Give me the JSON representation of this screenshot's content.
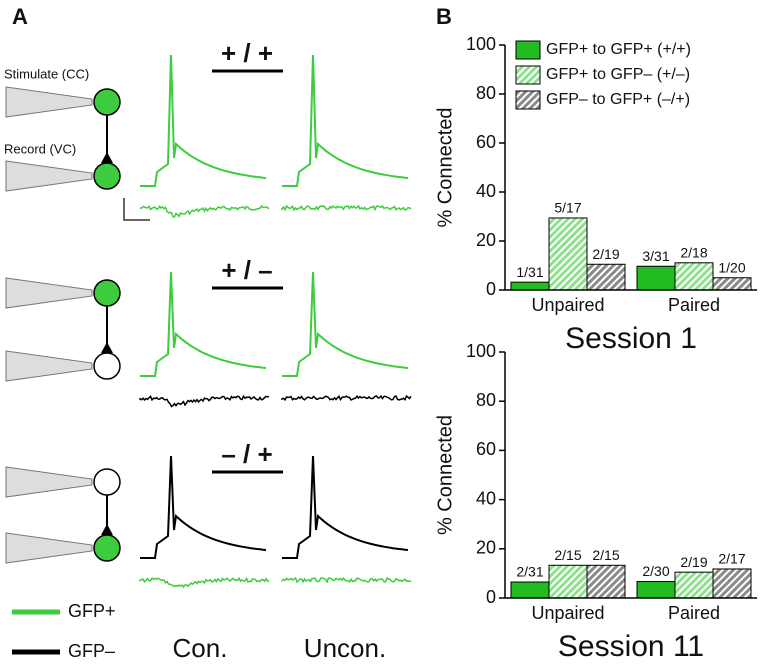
{
  "panel_a": {
    "label": "A",
    "stimulate": "Stimulate (CC)",
    "record": "Record (VC)",
    "rows": [
      "+ / +",
      "+ / –",
      "– / +"
    ],
    "legend": [
      {
        "name": "GFP+",
        "color": "#3dcc3d"
      },
      {
        "name": "GFP–",
        "color": "#000000"
      }
    ],
    "columns": [
      "Con.",
      "Uncon."
    ]
  },
  "panel_b": {
    "label": "B"
  },
  "chart_data": [
    {
      "type": "bar",
      "title": "Session 1",
      "y_label": "% Connected",
      "legend": "top-right",
      "categories": [
        "Unpaired",
        "Paired"
      ],
      "ylim": [
        0,
        100
      ],
      "yticks": [
        0,
        20,
        40,
        60,
        80,
        100
      ],
      "series": [
        {
          "name": "GFP+ to GFP+ (+/+)",
          "color": "#22bb22",
          "hatch": false,
          "values": [
            3.2,
            9.7
          ],
          "value_labels": [
            "1/31",
            "3/31"
          ]
        },
        {
          "name": "GFP+ to GFP– (+/–)",
          "color": "#8fe08f",
          "hatch": true,
          "values": [
            29.4,
            11.1
          ],
          "value_labels": [
            "5/17",
            "2/18"
          ]
        },
        {
          "name": "GFP– to GFP+ (–/+)",
          "color": "#8a8a8a",
          "hatch": true,
          "values": [
            10.5,
            5
          ],
          "value_labels": [
            "2/19",
            "1/20"
          ]
        }
      ]
    },
    {
      "type": "bar",
      "title": "Session 11",
      "y_label": "% Connected",
      "categories": [
        "Unpaired",
        "Paired"
      ],
      "ylim": [
        0,
        100
      ],
      "yticks": [
        0,
        20,
        40,
        60,
        80,
        100
      ],
      "series": [
        {
          "color": "#22bb22",
          "hatch": false,
          "values": [
            6.5,
            6.7
          ],
          "value_labels": [
            "2/31",
            "2/30"
          ]
        },
        {
          "color": "#8fe08f",
          "hatch": true,
          "values": [
            13.3,
            10.5
          ],
          "value_labels": [
            "2/15",
            "2/19"
          ]
        },
        {
          "color": "#8a8a8a",
          "hatch": true,
          "values": [
            13.3,
            11.8
          ],
          "value_labels": [
            "2/15",
            "2/17"
          ]
        }
      ]
    }
  ]
}
